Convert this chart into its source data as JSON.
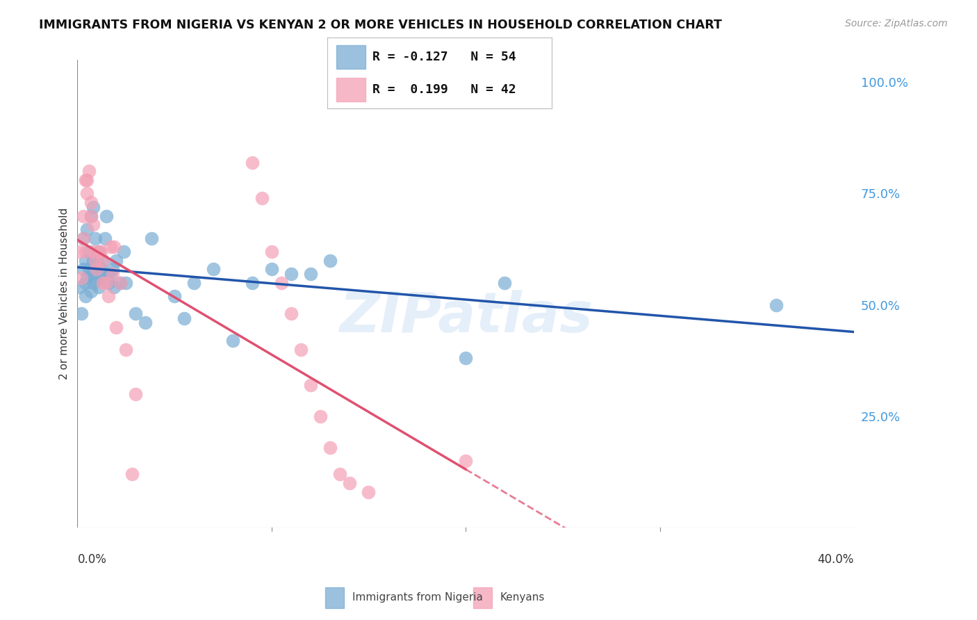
{
  "title": "IMMIGRANTS FROM NIGERIA VS KENYAN 2 OR MORE VEHICLES IN HOUSEHOLD CORRELATION CHART",
  "source": "Source: ZipAtlas.com",
  "ylabel": "2 or more Vehicles in Household",
  "yticks": [
    0.0,
    0.25,
    0.5,
    0.75,
    1.0
  ],
  "ytick_labels": [
    "",
    "25.0%",
    "50.0%",
    "75.0%",
    "100.0%"
  ],
  "legend_blue_r": "-0.127",
  "legend_blue_n": "54",
  "legend_pink_r": "0.199",
  "legend_pink_n": "42",
  "legend_label_blue": "Immigrants from Nigeria",
  "legend_label_pink": "Kenyans",
  "blue_color": "#7aadd4",
  "pink_color": "#f4a0b5",
  "blue_line_color": "#2255aa",
  "pink_line_color": "#e05070",
  "watermark": "ZIPatlas",
  "blue_points_x": [
    0.001,
    0.002,
    0.003,
    0.003,
    0.004,
    0.004,
    0.004,
    0.005,
    0.005,
    0.006,
    0.006,
    0.007,
    0.007,
    0.007,
    0.008,
    0.008,
    0.008,
    0.009,
    0.009,
    0.01,
    0.01,
    0.011,
    0.011,
    0.012,
    0.012,
    0.013,
    0.013,
    0.014,
    0.015,
    0.015,
    0.016,
    0.017,
    0.018,
    0.019,
    0.02,
    0.022,
    0.024,
    0.025,
    0.03,
    0.035,
    0.038,
    0.05,
    0.055,
    0.06,
    0.07,
    0.08,
    0.09,
    0.1,
    0.11,
    0.12,
    0.13,
    0.2,
    0.22,
    0.36
  ],
  "blue_points_y": [
    0.54,
    0.48,
    0.58,
    0.65,
    0.55,
    0.52,
    0.6,
    0.56,
    0.67,
    0.58,
    0.62,
    0.53,
    0.57,
    0.7,
    0.72,
    0.6,
    0.55,
    0.56,
    0.65,
    0.58,
    0.6,
    0.62,
    0.54,
    0.56,
    0.58,
    0.6,
    0.57,
    0.65,
    0.7,
    0.56,
    0.55,
    0.57,
    0.58,
    0.54,
    0.6,
    0.55,
    0.62,
    0.55,
    0.48,
    0.46,
    0.65,
    0.52,
    0.47,
    0.55,
    0.58,
    0.42,
    0.55,
    0.58,
    0.57,
    0.57,
    0.6,
    0.38,
    0.55,
    0.5
  ],
  "pink_points_x": [
    0.001,
    0.002,
    0.003,
    0.003,
    0.004,
    0.004,
    0.005,
    0.005,
    0.006,
    0.007,
    0.007,
    0.008,
    0.008,
    0.009,
    0.01,
    0.011,
    0.012,
    0.013,
    0.013,
    0.015,
    0.016,
    0.017,
    0.018,
    0.019,
    0.02,
    0.022,
    0.025,
    0.028,
    0.03,
    0.09,
    0.095,
    0.1,
    0.105,
    0.11,
    0.115,
    0.12,
    0.125,
    0.13,
    0.135,
    0.14,
    0.15,
    0.2
  ],
  "pink_points_y": [
    0.62,
    0.56,
    0.7,
    0.65,
    0.62,
    0.78,
    0.78,
    0.75,
    0.8,
    0.7,
    0.73,
    0.68,
    0.62,
    0.6,
    0.58,
    0.62,
    0.62,
    0.6,
    0.55,
    0.55,
    0.52,
    0.63,
    0.57,
    0.63,
    0.45,
    0.55,
    0.4,
    0.12,
    0.3,
    0.82,
    0.74,
    0.62,
    0.55,
    0.48,
    0.4,
    0.32,
    0.25,
    0.18,
    0.12,
    0.1,
    0.08,
    0.15
  ],
  "xmin": 0.0,
  "xmax": 0.4,
  "ymin": 0.0,
  "ymax": 1.05
}
